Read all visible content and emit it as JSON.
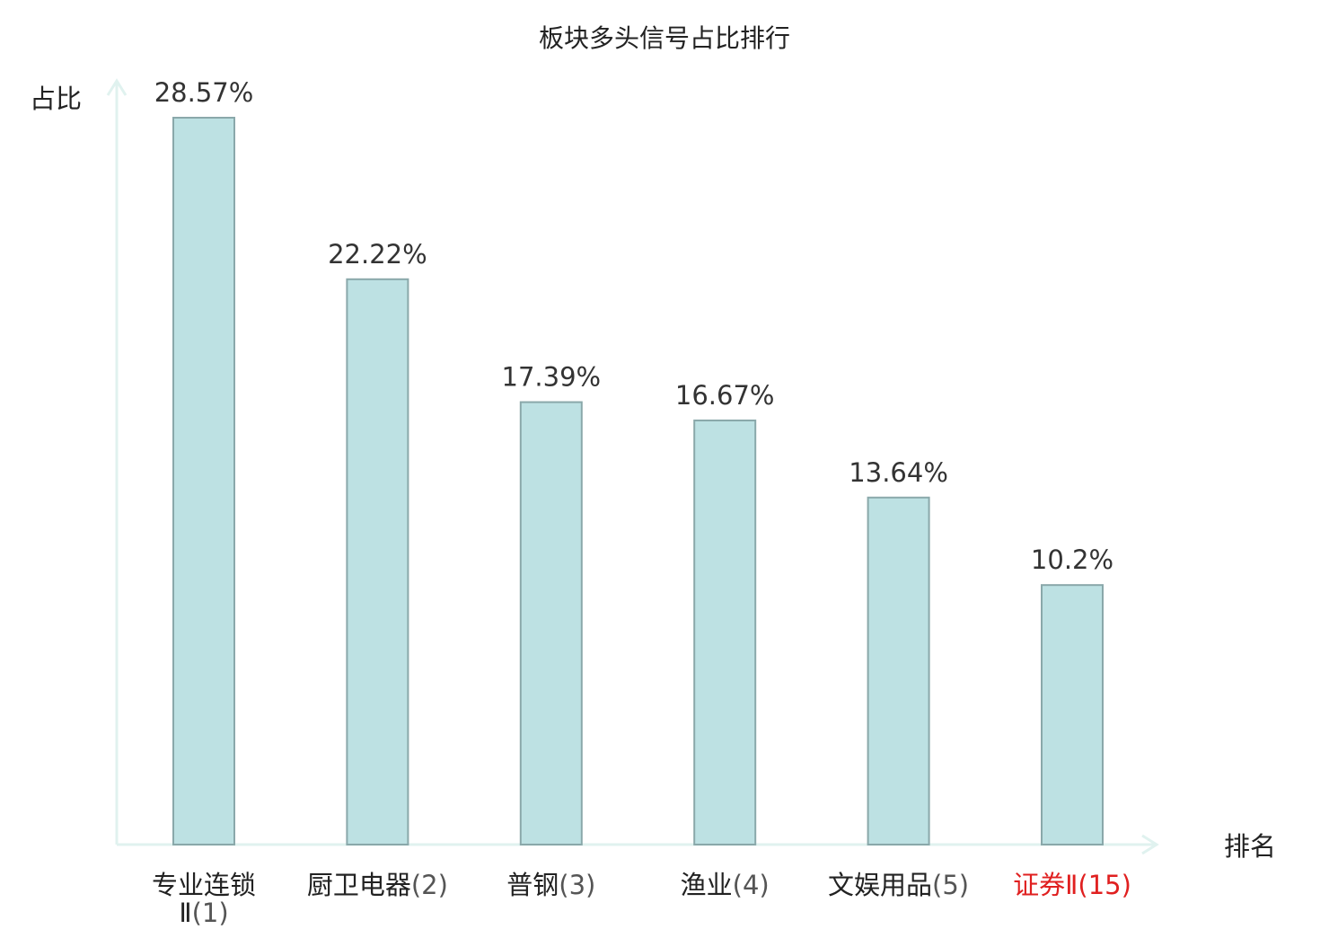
{
  "chart_data": {
    "type": "bar",
    "title": "板块多头信号占比排行",
    "ylabel": "占比",
    "xlabel": "排名",
    "categories": [
      "专业连锁Ⅱ(1)",
      "厨卫电器(2)",
      "普钢(3)",
      "渔业(4)",
      "文娱用品(5)",
      "证券Ⅱ(15)"
    ],
    "category_names": [
      "专业连锁Ⅱ",
      "厨卫电器",
      "普钢",
      "渔业",
      "文娱用品",
      "证券Ⅱ"
    ],
    "category_ranks": [
      "(1)",
      "(2)",
      "(3)",
      "(4)",
      "(5)",
      "(15)"
    ],
    "values": [
      28.57,
      22.22,
      17.39,
      16.67,
      13.64,
      10.2
    ],
    "value_labels": [
      "28.57%",
      "22.22%",
      "17.39%",
      "16.67%",
      "13.64%",
      "10.2%"
    ],
    "highlight_index": 5,
    "ylim": [
      0,
      28.57
    ],
    "grid": false,
    "legend": "none",
    "colors": {
      "bar_fill": "#bde1e3",
      "bar_stroke": "#8aa8aa",
      "axis": "#e0f2ef",
      "label_text": "#333333",
      "category_text": "#222222",
      "highlight_text": "#e02020"
    }
  }
}
